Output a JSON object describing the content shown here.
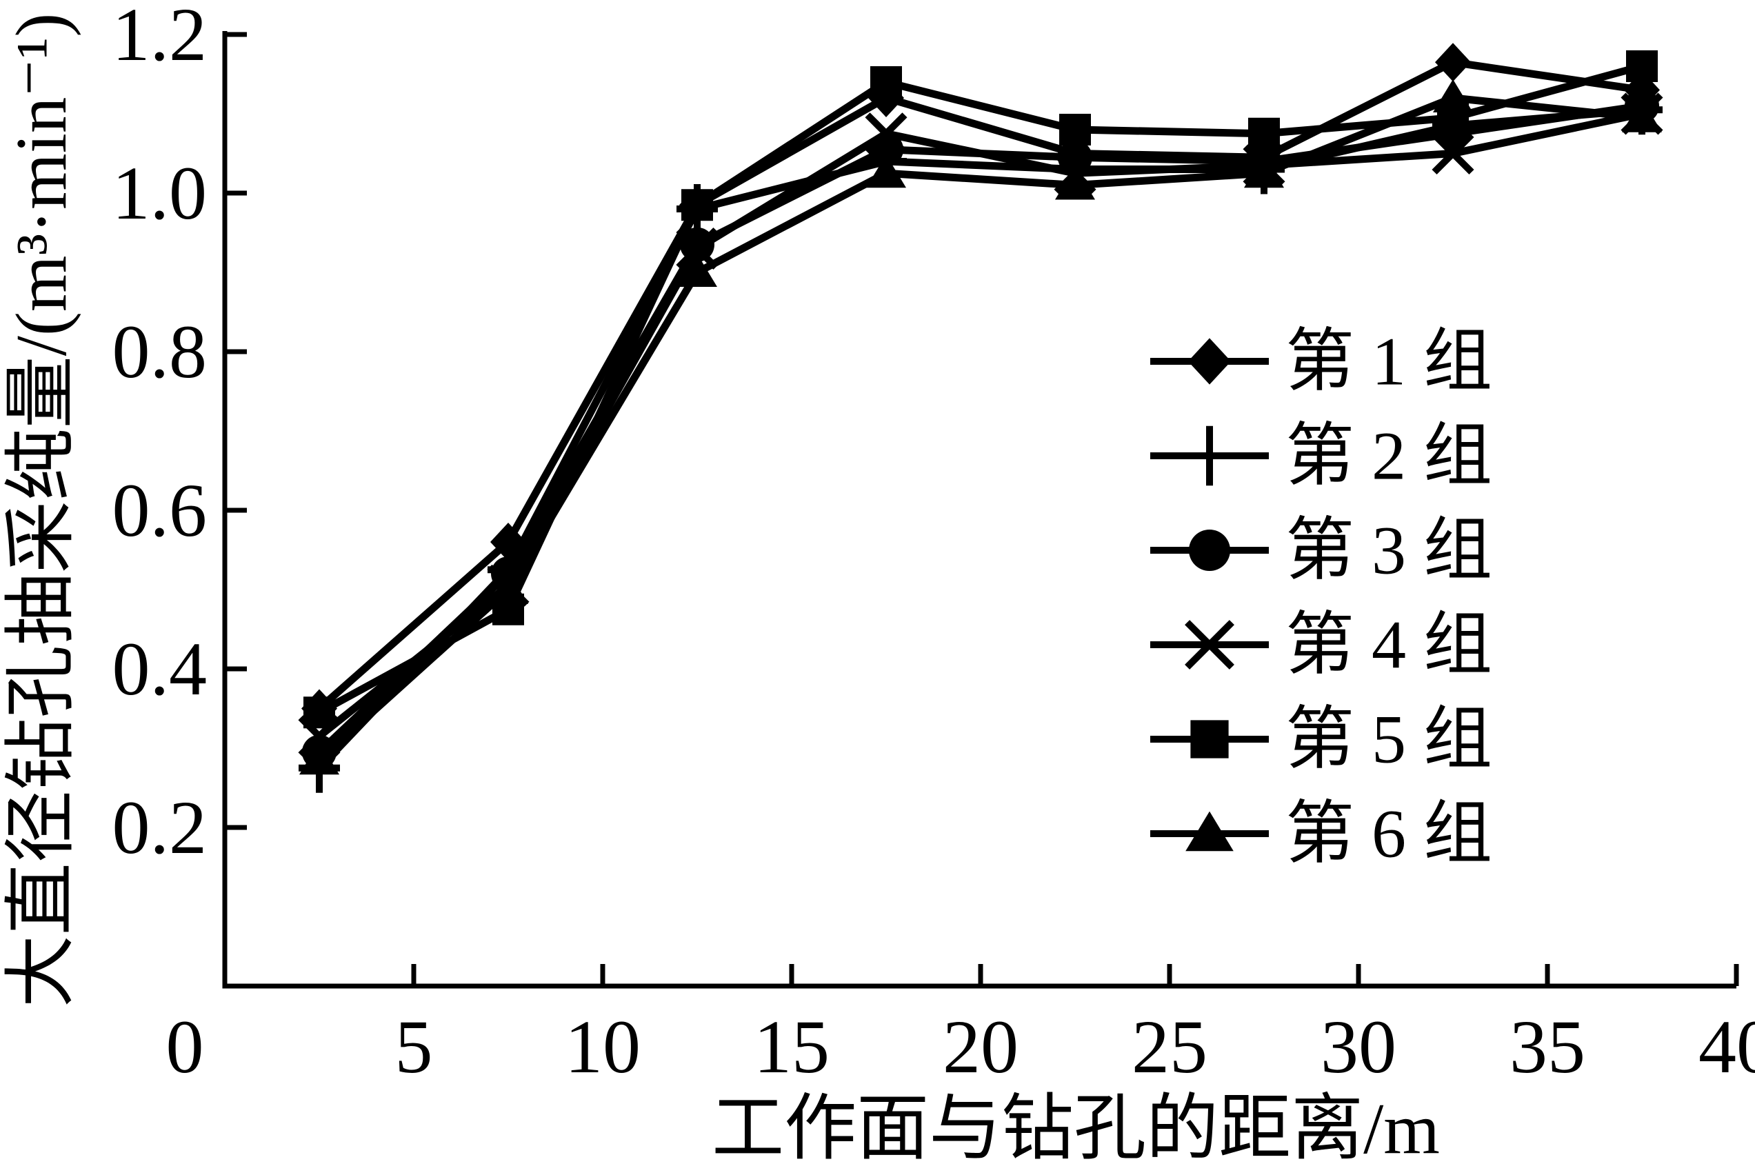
{
  "figure": {
    "background": "#ffffff",
    "ink": "#000000"
  },
  "chart_data": {
    "type": "line",
    "title": "",
    "xlabel": "工作面与钻孔的距离/m",
    "ylabel": "大直径钻孔抽采纯量/(m³·min⁻¹)",
    "xlim": [
      0,
      40
    ],
    "ylim": [
      0,
      1.2
    ],
    "grid": false,
    "legend_position": "inside-right",
    "x_ticks": {
      "values": [
        0,
        5,
        10,
        15,
        20,
        25,
        30,
        35,
        40
      ],
      "labels": [
        "0",
        "5",
        "10",
        "15",
        "20",
        "25",
        "30",
        "35",
        "40"
      ]
    },
    "y_ticks": {
      "values": [
        0.2,
        0.4,
        0.6,
        0.8,
        1.0,
        1.2
      ],
      "labels": [
        "0.2",
        "0.4",
        "0.6",
        "0.8",
        "1.0",
        "1.2"
      ]
    },
    "x": [
      2.5,
      7.5,
      12.5,
      17.5,
      22.5,
      27.5,
      32.5,
      37.5
    ],
    "series": [
      {
        "name": "第 1 组",
        "marker": "diamond",
        "values": [
          0.35,
          0.56,
          0.985,
          1.12,
          1.05,
          1.045,
          1.165,
          1.13
        ]
      },
      {
        "name": "第 2 组",
        "marker": "plus",
        "values": [
          0.275,
          0.525,
          0.98,
          1.04,
          1.03,
          1.03,
          1.085,
          1.105
        ]
      },
      {
        "name": "第 3 组",
        "marker": "circle",
        "values": [
          0.295,
          0.52,
          0.935,
          1.055,
          1.045,
          1.04,
          1.075,
          1.11
        ]
      },
      {
        "name": "第 4 组",
        "marker": "cross",
        "values": [
          0.315,
          0.505,
          0.93,
          1.075,
          1.025,
          1.035,
          1.05,
          1.1
        ]
      },
      {
        "name": "第 5 组",
        "marker": "square",
        "values": [
          0.345,
          0.475,
          0.985,
          1.14,
          1.08,
          1.075,
          1.095,
          1.16
        ]
      },
      {
        "name": "第 6 组",
        "marker": "triangle",
        "values": [
          0.285,
          0.5,
          0.9,
          1.025,
          1.01,
          1.025,
          1.12,
          1.095
        ]
      }
    ]
  }
}
